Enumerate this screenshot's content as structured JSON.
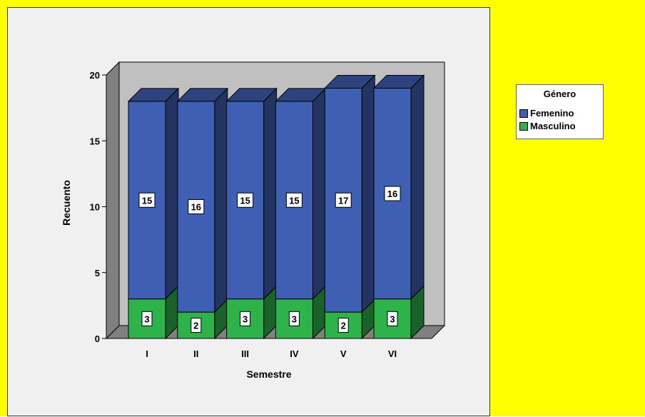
{
  "chart_data": {
    "type": "bar",
    "stacked": true,
    "three_d": true,
    "categories": [
      "I",
      "II",
      "III",
      "IV",
      "V",
      "VI"
    ],
    "series": [
      {
        "name": "Masculino",
        "color": "#2db34a",
        "values": [
          3,
          2,
          3,
          3,
          2,
          3
        ]
      },
      {
        "name": "Femenino",
        "color": "#3f5fb3",
        "values": [
          15,
          16,
          15,
          15,
          17,
          16
        ]
      }
    ],
    "xlabel": "Semestre",
    "ylabel": "Recuento",
    "ylim": [
      0,
      20
    ],
    "yticks": [
      0,
      5,
      10,
      15,
      20
    ],
    "legend_title": "Género",
    "legend_placement": "right",
    "colors": {
      "outer_background": "#ffff00",
      "plot_background": "#f0f0f0",
      "back_wall": "#c0c0c0",
      "side_wall": "#808080"
    }
  },
  "legend": {
    "title": "Género",
    "items": [
      {
        "label": "Femenino",
        "color": "#3f5fb3"
      },
      {
        "label": "Masculino",
        "color": "#2db34a"
      }
    ]
  }
}
